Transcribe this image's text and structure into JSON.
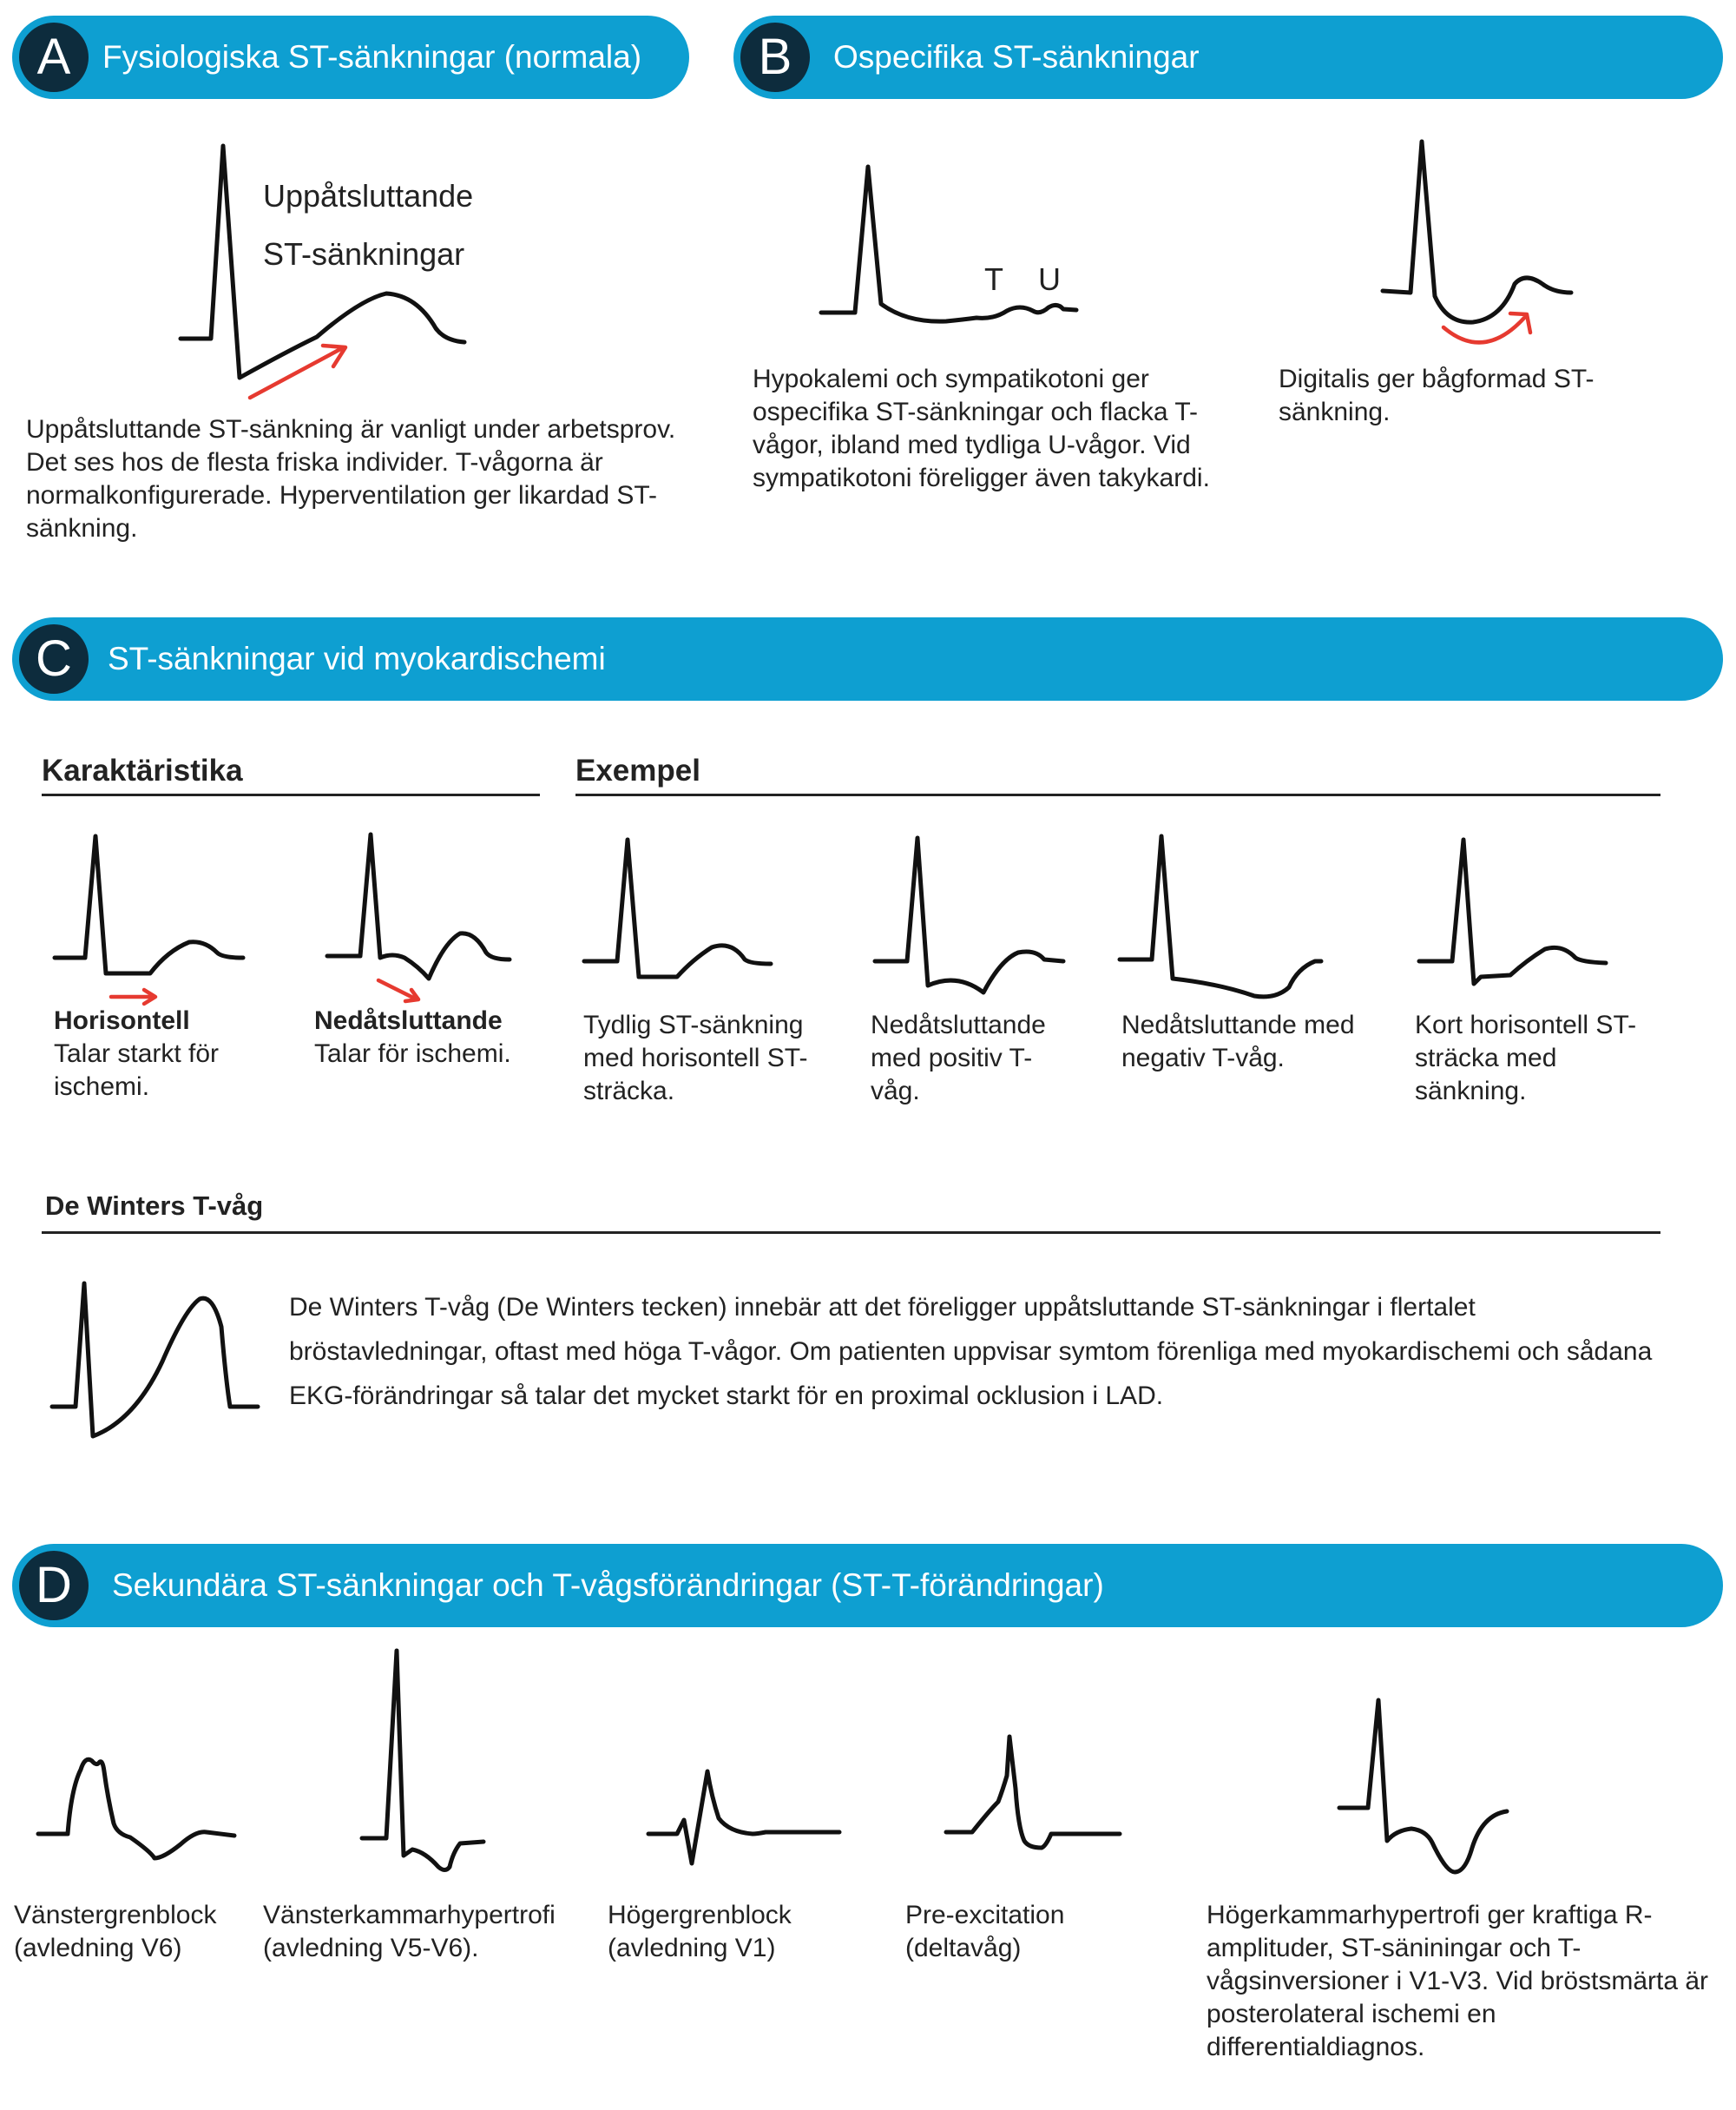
{
  "colors": {
    "banner": "#0e9fd1",
    "badge": "#0d2c3d",
    "arrow": "#e63a30",
    "trace": "#111111"
  },
  "section_a": {
    "letter": "A",
    "title": "Fysiologiska ST-sänkningar (normala)",
    "wave_label_1": "Uppåtsluttande",
    "wave_label_2": "ST-sänkningar",
    "description": "Uppåtsluttande ST-sänkning är vanligt under arbetsprov. Det ses hos de flesta friska individer. T-vågorna är normalkonfigurerade. Hyperventilation ger likardad ST-sänkning."
  },
  "section_b": {
    "letter": "B",
    "title": "Ospecifika ST-sänkningar",
    "t_label": "T",
    "u_label": "U",
    "hypokalemi_text": "Hypokalemi och sympatikotoni ger ospecifika ST-sänkningar och flacka T-vågor, ibland med tydliga U-vågor. Vid sympatikotoni föreligger även takykardi.",
    "digitalis_text": "Digitalis ger bågformad ST-sänkning."
  },
  "section_c": {
    "letter": "C",
    "title": "ST-sänkningar vid myokardischemi",
    "characteristics_heading": "Karaktäristika",
    "examples_heading": "Exempel",
    "horizontal_bold": "Horisontell",
    "horizontal_text": "Talar starkt för ischemi.",
    "downsloping_bold": "Nedåtsluttande",
    "downsloping_text": "Talar för ischemi.",
    "examples": [
      {
        "text": "Tydlig ST-sänkning med horisontell ST-sträcka."
      },
      {
        "text": "Nedåtsluttande med positiv T-våg."
      },
      {
        "text": "Nedåtsluttande med negativ T-våg."
      },
      {
        "text": "Kort horisontell ST-sträcka med sänkning."
      }
    ],
    "dewinter_heading": "De Winters T-våg",
    "dewinter_text": "De Winters T-våg (De Winters tecken) innebär att det föreligger uppåtsluttande ST-sänkningar i flertalet bröstavledningar, oftast med höga T-vågor. Om patienten uppvisar symtom förenliga med myokardischemi och sådana EKG-förändringar så talar det mycket starkt för en proximal ocklusion i LAD."
  },
  "section_d": {
    "letter": "D",
    "title": "Sekundära ST-sänkningar och T-vågsförändringar (ST-T-förändringar)",
    "items": [
      {
        "text": "Vänstergrenblock (avledning V6)"
      },
      {
        "text": "Vänsterkammarhypertrofi (avledning V5-V6)."
      },
      {
        "text": "Högergrenblock (avledning V1)"
      },
      {
        "text": "Pre-excitation (deltavåg)"
      },
      {
        "text": "Högerkammarhypertrofi ger kraftiga R-amplituder, ST-säniningar och T-vågsinversioner i V1-V3. Vid bröstsmärta är posterolateral ischemi en differentialdiagnos."
      }
    ]
  }
}
